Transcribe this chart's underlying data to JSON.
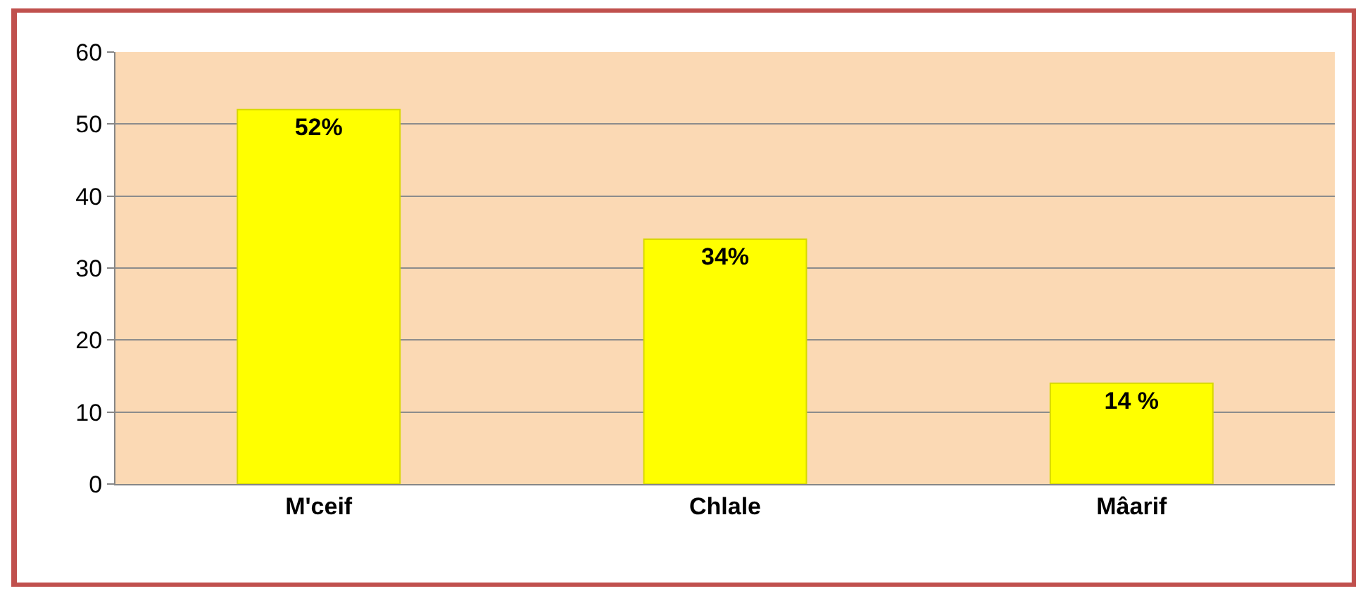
{
  "chart_data": {
    "type": "bar",
    "categories": [
      "M'ceif",
      "Chlale",
      "Mâarif"
    ],
    "values": [
      52,
      34,
      14
    ],
    "value_labels": [
      "52%",
      "34%",
      "14 %"
    ],
    "color": "#ffff00",
    "ylim": [
      0,
      60
    ],
    "yticks": [
      0,
      10,
      20,
      30,
      40,
      50,
      60
    ],
    "grid": "y",
    "legend": false
  }
}
